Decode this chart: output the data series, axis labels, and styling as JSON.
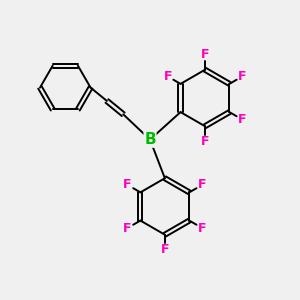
{
  "bg_color": "#f0f0f0",
  "bond_color": "#000000",
  "B_color": "#00bb00",
  "F_color": "#ff00bb",
  "bond_width": 1.4,
  "font_size_B": 11,
  "font_size_F": 9,
  "figsize": [
    3.0,
    3.0
  ],
  "dpi": 100,
  "xlim": [
    0,
    10
  ],
  "ylim": [
    0,
    10
  ]
}
